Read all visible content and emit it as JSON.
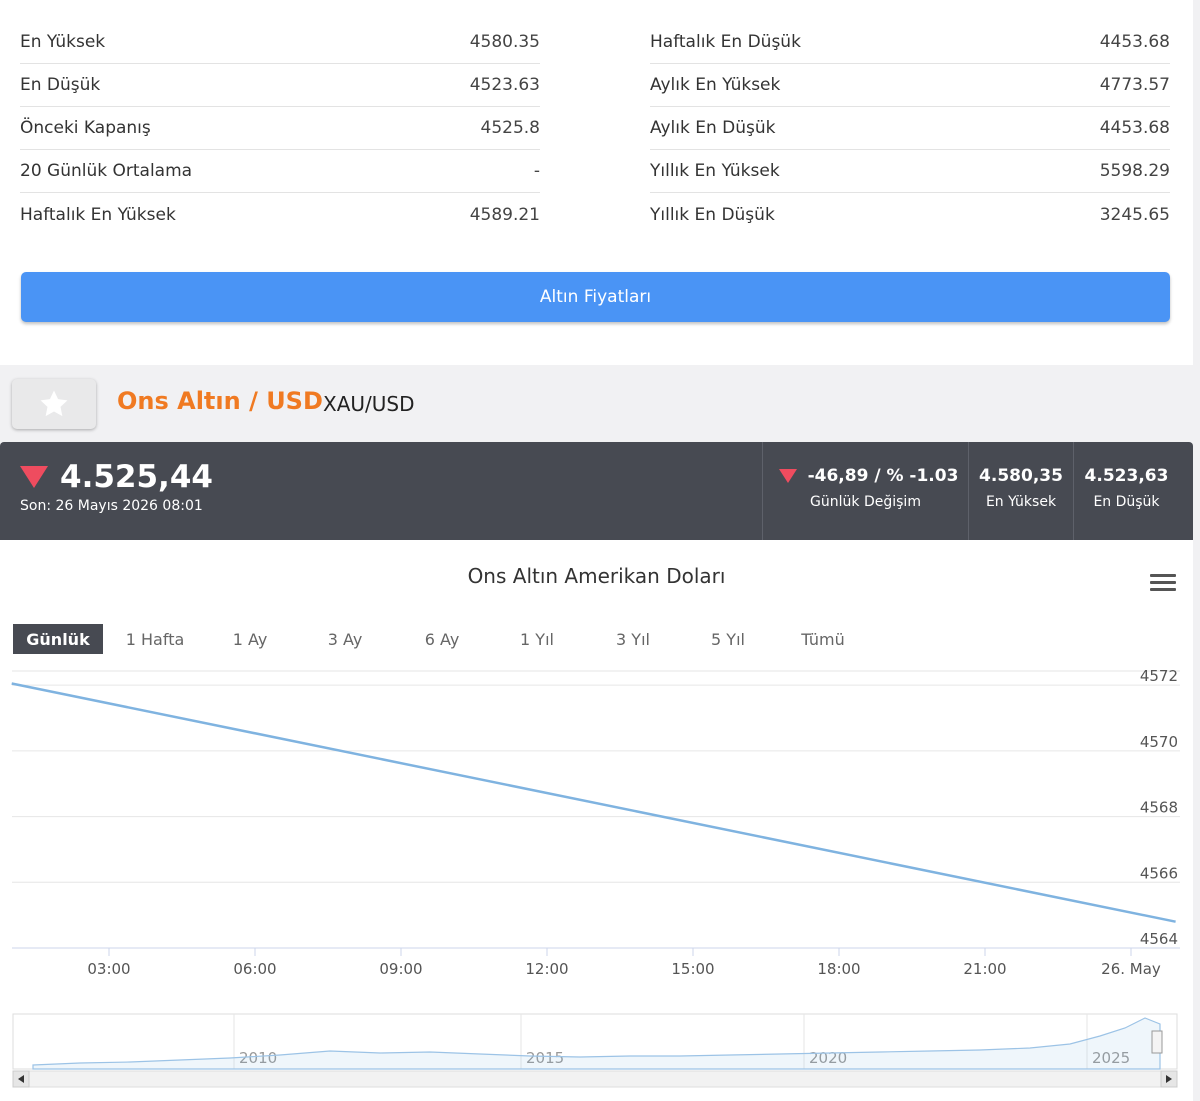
{
  "stats": {
    "left": [
      {
        "label": "En Yüksek",
        "value": "4580.35"
      },
      {
        "label": "En Düşük",
        "value": "4523.63"
      },
      {
        "label": "Önceki Kapanış",
        "value": "4525.8"
      },
      {
        "label": "20 Günlük Ortalama",
        "value": "-"
      },
      {
        "label": "Haftalık En Yüksek",
        "value": "4589.21"
      }
    ],
    "right": [
      {
        "label": "Haftalık En Düşük",
        "value": "4453.68"
      },
      {
        "label": "Aylık En Yüksek",
        "value": "4773.57"
      },
      {
        "label": "Aylık En Düşük",
        "value": "4453.68"
      },
      {
        "label": "Yıllık En Yüksek",
        "value": "5598.29"
      },
      {
        "label": "Yıllık En Düşük",
        "value": "3245.65"
      }
    ]
  },
  "gold_prices_button": "Altın Fiyatları",
  "heading": {
    "title": "Ons Altın / USD",
    "code": "XAU/USD"
  },
  "price_bar": {
    "price": "4.525,44",
    "last_update": "Son: 26 Mayıs 2026 08:01",
    "change_value": "-46,89 / % -1.03",
    "change_label": "Günlük Değişim",
    "high_value": "4.580,35",
    "high_label": "En Yüksek",
    "low_value": "4.523,63",
    "low_label": "En Düşük",
    "down_color": "#ef4c5f"
  },
  "chart": {
    "title": "Ons Altın Amerikan Doları",
    "range_buttons": [
      "Günlük",
      "1 Hafta",
      "1 Ay",
      "3 Ay",
      "6 Ay",
      "1 Yıl",
      "3 Yıl",
      "5 Yıl",
      "Tümü"
    ],
    "active_range": "Günlük"
  },
  "chart_data": {
    "type": "line",
    "title": "Ons Altın Amerikan Doları",
    "x_ticks": [
      "03:00",
      "06:00",
      "09:00",
      "12:00",
      "15:00",
      "18:00",
      "21:00",
      "26. May"
    ],
    "y_ticks": [
      4564,
      4566,
      4568,
      4570,
      4572
    ],
    "ylim": [
      4564,
      4572.4
    ],
    "series": [
      {
        "points": [
          {
            "x": "01:00",
            "y": 4572.05
          },
          {
            "x": "24:55",
            "y": 4564.8
          }
        ],
        "color": "#7fb3e0"
      }
    ],
    "navigator": {
      "x_ticks": [
        "2010",
        "2015",
        "2020",
        "2025"
      ]
    }
  }
}
